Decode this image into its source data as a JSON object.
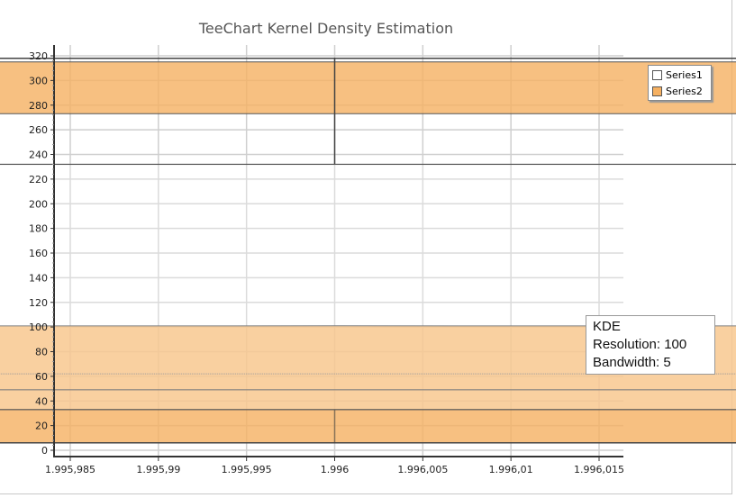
{
  "chart_data": {
    "type": "violin",
    "title": "TeeChart Kernel Density Estimation",
    "xlim": [
      1.995984,
      1.996016
    ],
    "ylim": [
      -5,
      330
    ],
    "x_ticks": [
      1.995985,
      1.99599,
      1.995995,
      1.996,
      1.996005,
      1.99601,
      1.996015
    ],
    "x_tick_labels": [
      "1.995,985",
      "1.995,99",
      "1.995,995",
      "1.996",
      "1.996,005",
      "1.996,01",
      "1.996,015"
    ],
    "y_ticks": [
      0,
      20,
      40,
      60,
      80,
      100,
      120,
      140,
      160,
      180,
      200,
      220,
      240,
      260,
      280,
      300,
      320
    ],
    "grid": true,
    "legend": {
      "placement": "right",
      "entries": [
        "Series1",
        "Series2"
      ]
    },
    "series": [
      {
        "name": "Series1",
        "type": "boxplot",
        "position": 1.996,
        "box_half_width": 0.0007,
        "whisker_low": 6,
        "q1": 33,
        "median": 62,
        "q3": 232,
        "whisker_high": 318,
        "color": "#ffffff"
      },
      {
        "name": "Series2",
        "type": "kde-violin",
        "center": 1.996,
        "color": "#f5b061",
        "profile_value_halfwidth": [
          [
            [
              315,
              0
            ],
            [
              315,
              0.0051
            ],
            [
              309,
              0.0075
            ],
            [
              303,
              0.0074
            ],
            [
              295,
              0.0046
            ],
            [
              290,
              0.0074
            ],
            [
              287,
              0.0068
            ],
            [
              280,
              0.0051
            ],
            [
              273,
              0
            ]
          ],
          [
            [
              101,
              0
            ],
            [
              98,
              0.0009
            ],
            [
              90,
              0.0053
            ],
            [
              82,
              0.0072
            ],
            [
              81,
              0.0077
            ],
            [
              80,
              0.0101
            ],
            [
              77,
              0.0108
            ],
            [
              70,
              0.0076
            ],
            [
              67,
              0.0074
            ],
            [
              63,
              0.007
            ],
            [
              60,
              0.0066
            ],
            [
              55,
              0.0049
            ],
            [
              51,
              0.0007
            ],
            [
              49,
              0
            ]
          ],
          [
            [
              49,
              0
            ],
            [
              49,
              0.0007
            ],
            [
              39,
              0.0098
            ],
            [
              37,
              0.0151
            ],
            [
              34,
              0.0154
            ],
            [
              28,
              0.0072
            ],
            [
              25,
              0.0066
            ],
            [
              21,
              0.0085
            ],
            [
              18,
              0.0102
            ],
            [
              14,
              0.0099
            ],
            [
              9,
              0.0102
            ],
            [
              7,
              0.0079
            ],
            [
              6,
              0.0072
            ],
            [
              6,
              0
            ]
          ]
        ]
      }
    ],
    "annotation": {
      "line1": "KDE",
      "line2": "Resolution: 100",
      "line3": "Bandwidth: 5"
    }
  }
}
